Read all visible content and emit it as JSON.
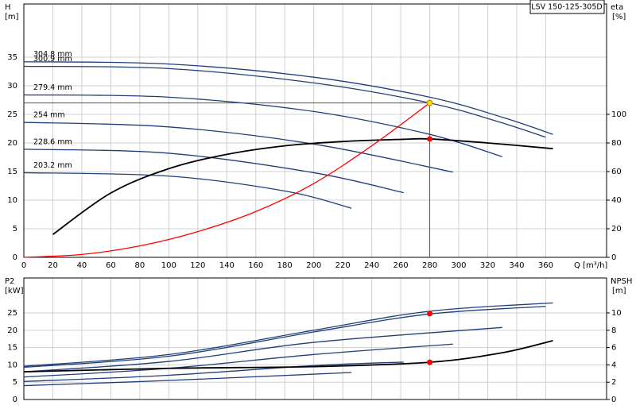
{
  "chart_data": [
    {
      "type": "line",
      "title": "LSV 150-125-305D",
      "y_label": "H",
      "y_unit": "[m]",
      "y2_label": "eta",
      "y2_unit": "[%]",
      "x_label": "Q [m³/h]",
      "xlim": [
        0,
        402
      ],
      "xticks": [
        0,
        20,
        40,
        60,
        80,
        100,
        120,
        140,
        160,
        180,
        200,
        220,
        240,
        260,
        280,
        300,
        320,
        340,
        360
      ],
      "ylim": [
        0,
        44.3
      ],
      "yticks": [
        0,
        5,
        10,
        15,
        20,
        25,
        30,
        35
      ],
      "y2lim": [
        0,
        177.2
      ],
      "y2ticks": [
        0,
        20,
        40,
        60,
        80,
        100
      ],
      "grid": true,
      "series": [
        {
          "name": "304.8 mm",
          "color": "#1f3f7a",
          "x": [
            0,
            100,
            200,
            280,
            330,
            365
          ],
          "values": [
            34.2,
            33.8,
            31.5,
            28.0,
            24.5,
            21.5
          ]
        },
        {
          "name": "300.9 mm",
          "color": "#1f3f7a",
          "x": [
            0,
            100,
            200,
            280,
            330,
            360
          ],
          "values": [
            33.4,
            33.0,
            30.5,
            27.0,
            23.5,
            21.0
          ]
        },
        {
          "name": "279.4 mm",
          "color": "#1f3f7a",
          "x": [
            0,
            100,
            200,
            280,
            330
          ],
          "values": [
            28.4,
            28.0,
            25.5,
            21.5,
            17.6
          ]
        },
        {
          "name": "254 mm",
          "color": "#1f3f7a",
          "x": [
            0,
            100,
            200,
            296
          ],
          "values": [
            23.6,
            22.8,
            19.8,
            14.9
          ]
        },
        {
          "name": "228.6 mm",
          "color": "#1f3f7a",
          "x": [
            0,
            100,
            200,
            262
          ],
          "values": [
            18.9,
            18.2,
            14.8,
            11.3
          ]
        },
        {
          "name": "203.2 mm",
          "color": "#1f3f7a",
          "x": [
            0,
            100,
            180,
            226
          ],
          "values": [
            14.8,
            14.2,
            11.6,
            8.6
          ]
        },
        {
          "color": "#000000",
          "axis": "y2",
          "x": [
            20,
            60,
            100,
            140,
            180,
            220,
            260,
            280,
            320,
            365
          ],
          "values": [
            16,
            45,
            62,
            72,
            78,
            81,
            82.5,
            82.8,
            80,
            76
          ]
        },
        {
          "color": "#ff0000",
          "x": [
            0,
            40,
            80,
            120,
            160,
            200,
            240,
            280
          ],
          "values": [
            0,
            0.5,
            2,
            4.5,
            8,
            12.9,
            19.5,
            27
          ]
        }
      ],
      "markers": [
        {
          "x": 280,
          "y": 27,
          "color": "#ffd700"
        },
        {
          "x": 280,
          "y": 82.8,
          "axis": "y2",
          "color": "#ff0000"
        }
      ]
    },
    {
      "type": "line",
      "y_label": "P2",
      "y_unit": "[kW]",
      "y2_label": "NPSH",
      "y2_unit": "[m]",
      "xlim": [
        0,
        402
      ],
      "xticks": [
        0,
        20,
        40,
        60,
        80,
        100,
        120,
        140,
        160,
        180,
        200,
        220,
        240,
        260,
        280,
        300,
        320,
        340,
        360
      ],
      "ylim": [
        0,
        35.1
      ],
      "yticks": [
        0,
        5,
        10,
        15,
        20,
        25
      ],
      "y2lim": [
        0,
        14.04
      ],
      "y2ticks": [
        0,
        2,
        4,
        6,
        8,
        10
      ],
      "grid": true,
      "series": [
        {
          "color": "#1f3f7a",
          "x": [
            0,
            100,
            200,
            280,
            365
          ],
          "values": [
            9.6,
            13,
            20,
            25.5,
            27.9
          ]
        },
        {
          "color": "#1f3f7a",
          "x": [
            0,
            100,
            200,
            280,
            360
          ],
          "values": [
            9.3,
            12.5,
            19.5,
            24.7,
            26.9
          ]
        },
        {
          "color": "#1f3f7a",
          "x": [
            0,
            100,
            200,
            330
          ],
          "values": [
            8,
            11,
            16.5,
            20.8
          ]
        },
        {
          "color": "#1f3f7a",
          "x": [
            0,
            100,
            200,
            296
          ],
          "values": [
            6.5,
            9,
            13,
            16
          ]
        },
        {
          "color": "#1f3f7a",
          "x": [
            0,
            100,
            200,
            262
          ],
          "values": [
            5.2,
            7,
            9.8,
            10.8
          ]
        },
        {
          "color": "#1f3f7a",
          "x": [
            0,
            100,
            226
          ],
          "values": [
            4,
            5.5,
            7.8
          ]
        },
        {
          "color": "#000000",
          "axis": "y2",
          "x": [
            0,
            100,
            200,
            280,
            330,
            365
          ],
          "values": [
            3.2,
            3.6,
            3.8,
            4.3,
            5.4,
            6.8
          ]
        }
      ],
      "markers": [
        {
          "x": 280,
          "y": 24.8,
          "color": "#ff0000"
        },
        {
          "x": 280,
          "y": 4.3,
          "axis": "y2",
          "color": "#ff0000"
        }
      ]
    }
  ]
}
